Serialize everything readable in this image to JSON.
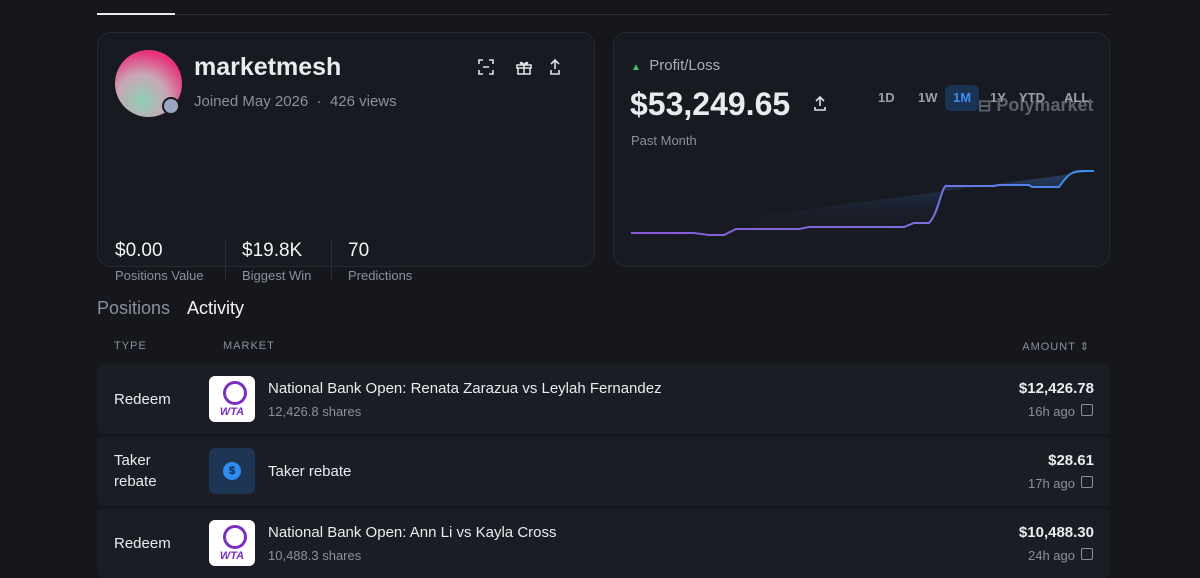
{
  "profile": {
    "username": "marketmesh",
    "joined": "Joined May 2026",
    "separator": "·",
    "views": "426 views",
    "stats": [
      {
        "value": "$0.00",
        "label": "Positions Value"
      },
      {
        "value": "$19.8K",
        "label": "Biggest Win"
      },
      {
        "value": "70",
        "label": "Predictions"
      }
    ]
  },
  "pnl": {
    "label": "Profit/Loss",
    "amount": "$53,249.65",
    "period": "Past Month",
    "ranges": [
      "1D",
      "1W",
      "1M",
      "1Y",
      "YTD",
      "ALL"
    ],
    "active_range": "1M",
    "brand": "Polymarket"
  },
  "tabs": [
    "Positions",
    "Activity"
  ],
  "active_tab": "Activity",
  "table": {
    "columns": [
      "TYPE",
      "MARKET",
      "AMOUNT"
    ],
    "rows": [
      {
        "type": "Redeem",
        "icon": "WTA",
        "market": "National Bank Open: Renata Zarazua vs Leylah Fernandez",
        "shares": "12,426.8 shares",
        "amount": "$12,426.78",
        "time": "16h ago"
      },
      {
        "type": "Taker rebate",
        "icon": "$",
        "market": "Taker rebate",
        "amount": "$28.61",
        "time": "17h ago"
      },
      {
        "type": "Redeem",
        "icon": "WTA",
        "market": "National Bank Open: Ann Li vs Kayla Cross",
        "shares": "10,488.3 shares",
        "amount": "$10,488.30",
        "time": "24h ago"
      }
    ]
  }
}
